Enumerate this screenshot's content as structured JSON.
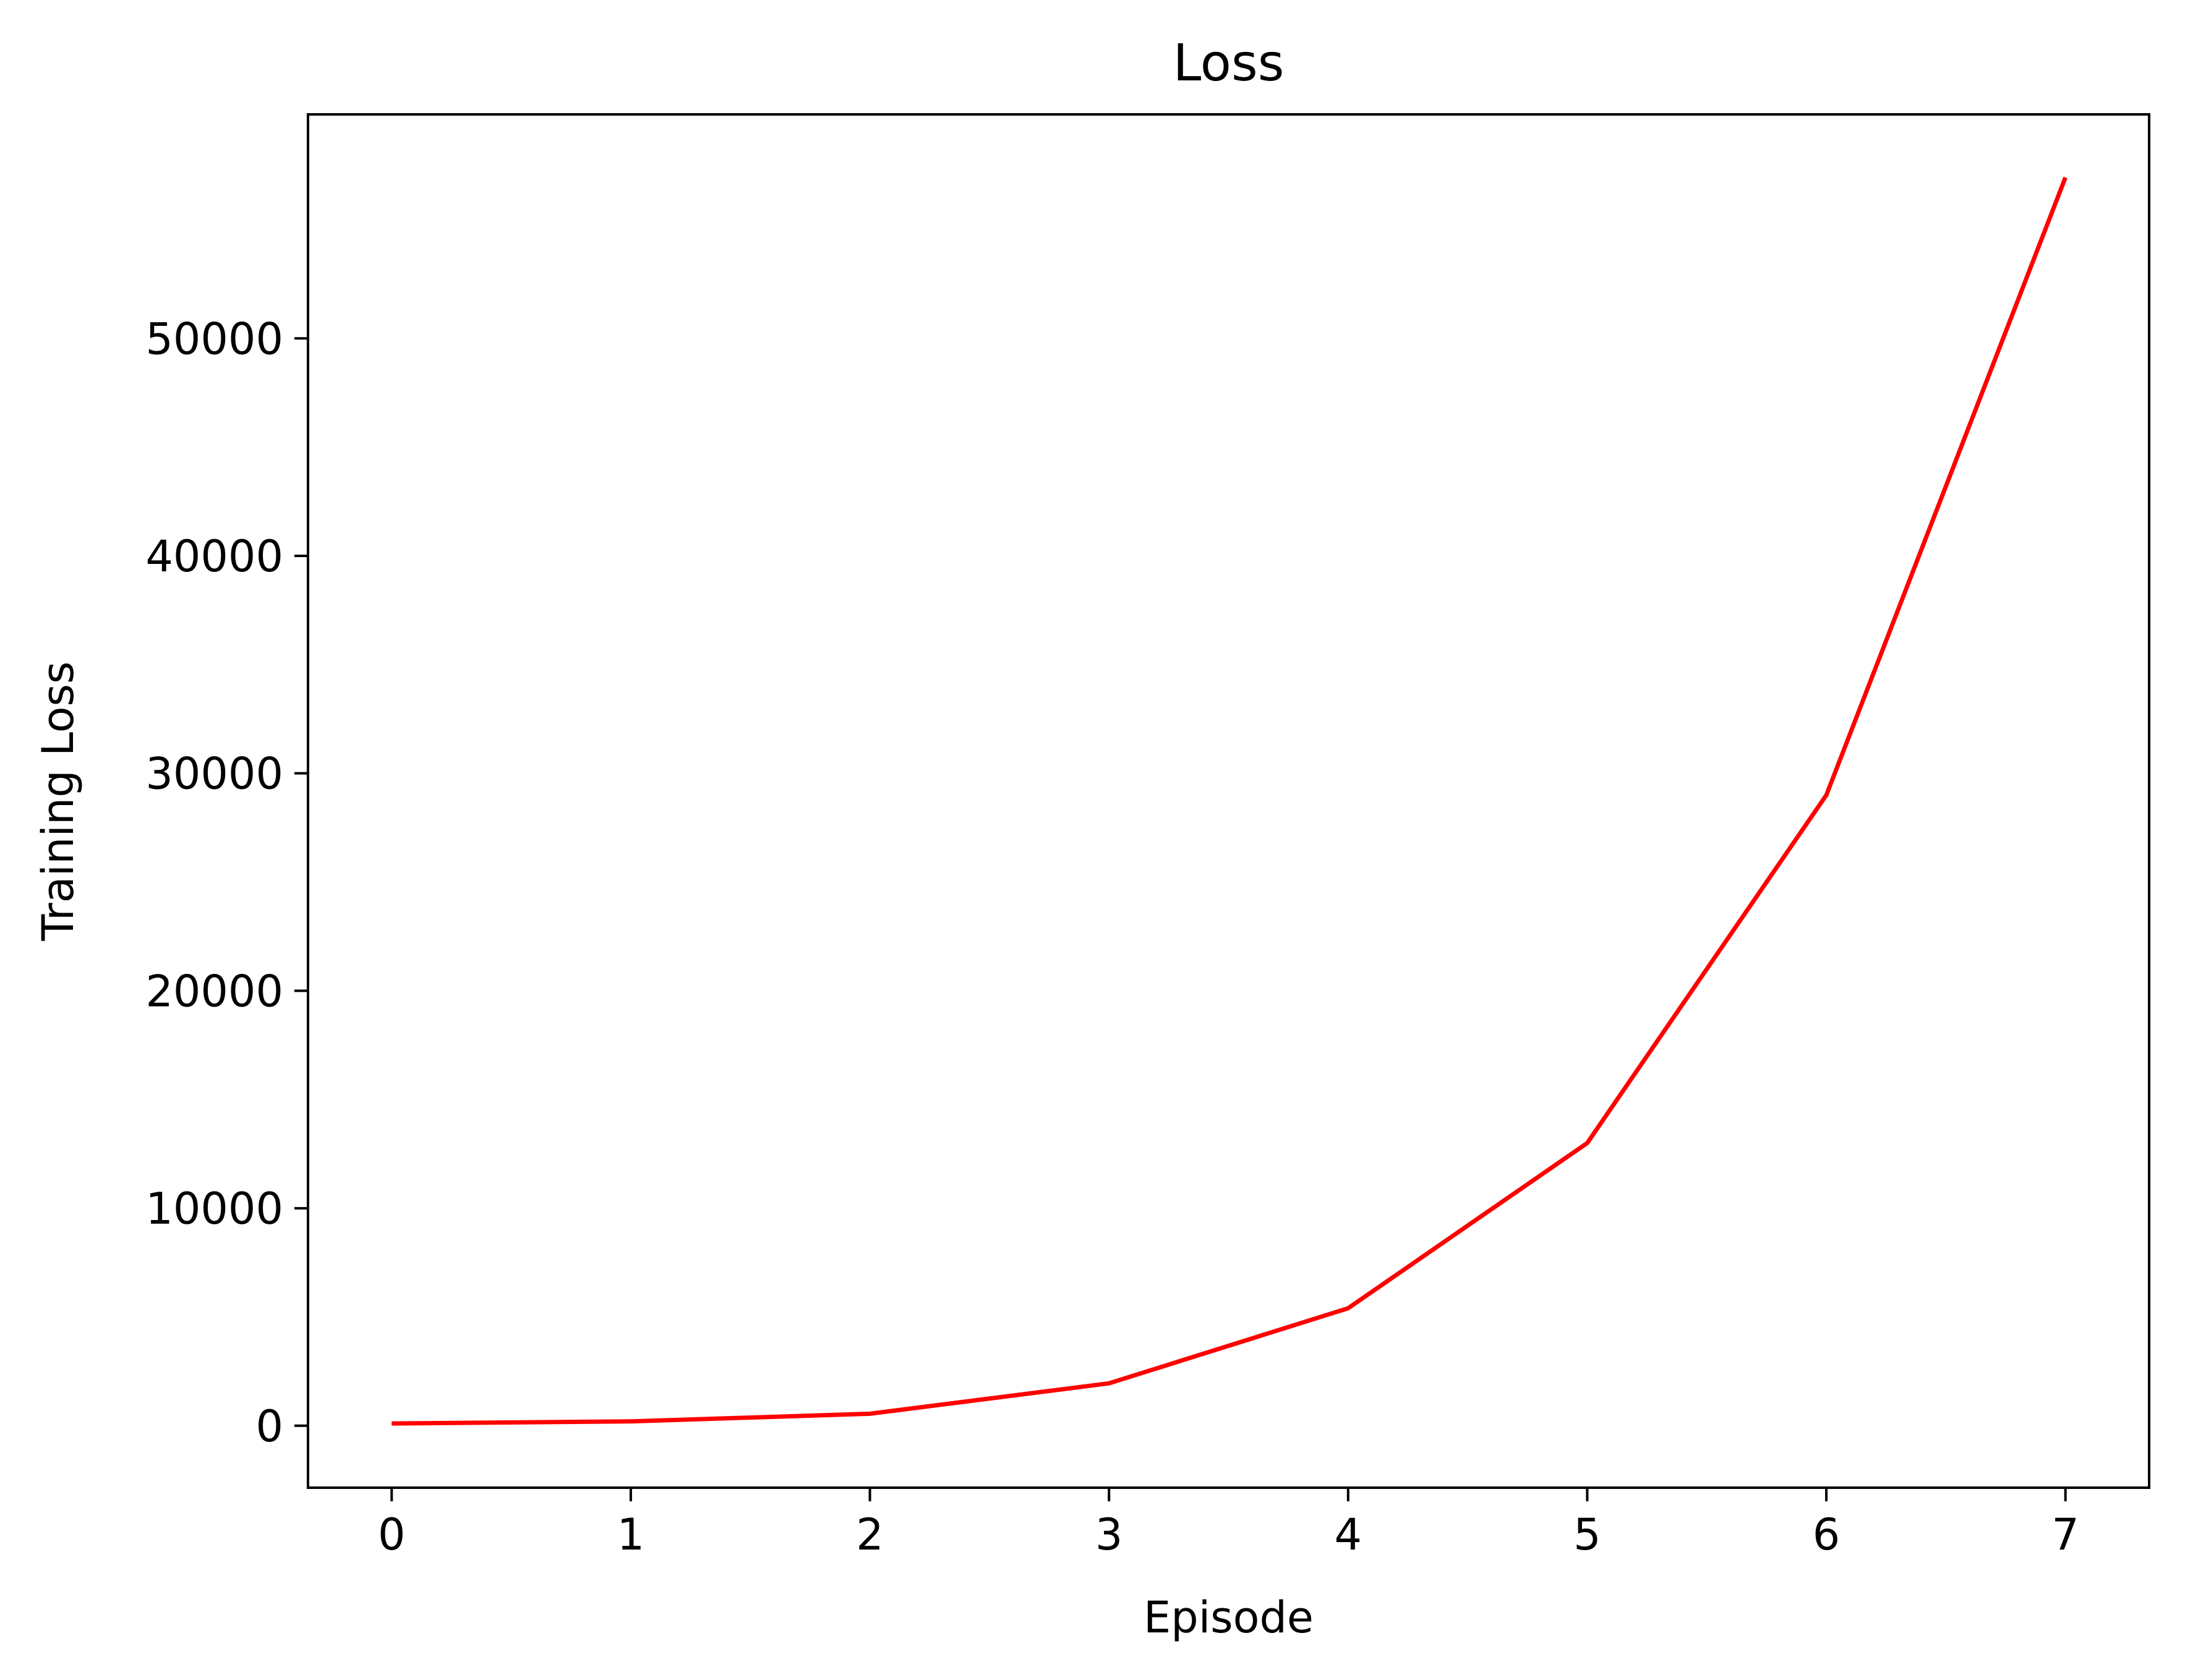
{
  "chart_data": {
    "type": "line",
    "title": "Loss",
    "xlabel": "Episode",
    "ylabel": "Training Loss",
    "x": [
      0,
      1,
      2,
      3,
      4,
      5,
      6,
      7
    ],
    "series": [
      {
        "values": [
          100,
          200,
          550,
          1950,
          5400,
          13000,
          29000,
          57400
        ]
      }
    ],
    "xlim": [
      -0.35,
      7.35
    ],
    "ylim": [
      -2850,
      60300
    ],
    "xticks": [
      0,
      1,
      2,
      3,
      4,
      5,
      6,
      7
    ],
    "yticks": [
      0,
      10000,
      20000,
      30000,
      40000,
      50000
    ],
    "grid": false,
    "line_color": "#ff0000"
  }
}
